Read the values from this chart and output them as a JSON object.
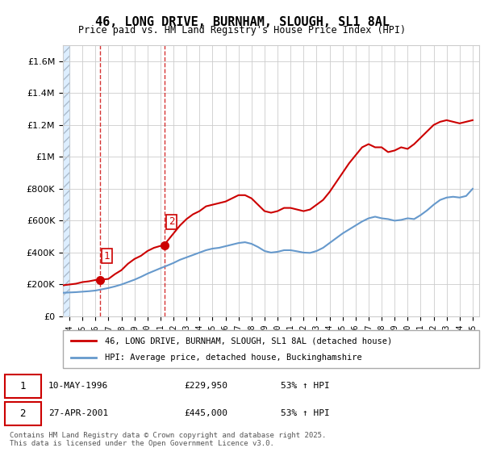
{
  "title": "46, LONG DRIVE, BURNHAM, SLOUGH, SL1 8AL",
  "subtitle": "Price paid vs. HM Land Registry's House Price Index (HPI)",
  "legend_entry1": "46, LONG DRIVE, BURNHAM, SLOUGH, SL1 8AL (detached house)",
  "legend_entry2": "HPI: Average price, detached house, Buckinghamshire",
  "footer": "Contains HM Land Registry data © Crown copyright and database right 2025.\nThis data is licensed under the Open Government Licence v3.0.",
  "sale1_date": "10-MAY-1996",
  "sale1_price": "£229,950",
  "sale1_hpi": "53% ↑ HPI",
  "sale2_date": "27-APR-2001",
  "sale2_price": "£445,000",
  "sale2_hpi": "53% ↑ HPI",
  "red_color": "#cc0000",
  "blue_color": "#6699cc",
  "background_hatch_color": "#ddeeff",
  "grid_color": "#cccccc",
  "ylim": [
    0,
    1700000
  ],
  "yticks": [
    0,
    200000,
    400000,
    600000,
    800000,
    1000000,
    1200000,
    1400000,
    1600000
  ],
  "sale1_x": 1996.36,
  "sale1_y": 229950,
  "sale2_x": 2001.32,
  "sale2_y": 445000,
  "xmin": 1993.5,
  "xmax": 2025.5,
  "red_line_x": [
    1993.5,
    1994,
    1994.5,
    1995,
    1995.5,
    1996,
    1996.36,
    1997,
    1997.5,
    1998,
    1998.5,
    1999,
    1999.5,
    2000,
    2000.5,
    2001,
    2001.32,
    2001.5,
    2002,
    2002.5,
    2003,
    2003.5,
    2004,
    2004.5,
    2005,
    2005.5,
    2006,
    2006.5,
    2007,
    2007.5,
    2008,
    2008.5,
    2009,
    2009.5,
    2010,
    2010.5,
    2011,
    2011.5,
    2012,
    2012.5,
    2013,
    2013.5,
    2014,
    2014.5,
    2015,
    2015.5,
    2016,
    2016.5,
    2017,
    2017.5,
    2018,
    2018.5,
    2019,
    2019.5,
    2020,
    2020.5,
    2021,
    2021.5,
    2022,
    2022.5,
    2023,
    2023.5,
    2024,
    2024.5,
    2025
  ],
  "red_line_y": [
    195000,
    200000,
    205000,
    215000,
    220000,
    228000,
    229950,
    235000,
    265000,
    290000,
    330000,
    360000,
    380000,
    410000,
    430000,
    442000,
    445000,
    470000,
    520000,
    570000,
    610000,
    640000,
    660000,
    690000,
    700000,
    710000,
    720000,
    740000,
    760000,
    760000,
    740000,
    700000,
    660000,
    650000,
    660000,
    680000,
    680000,
    670000,
    660000,
    670000,
    700000,
    730000,
    780000,
    840000,
    900000,
    960000,
    1010000,
    1060000,
    1080000,
    1060000,
    1060000,
    1030000,
    1040000,
    1060000,
    1050000,
    1080000,
    1120000,
    1160000,
    1200000,
    1220000,
    1230000,
    1220000,
    1210000,
    1220000,
    1230000
  ],
  "blue_line_x": [
    1993.5,
    1994,
    1994.5,
    1995,
    1995.5,
    1996,
    1996.5,
    1997,
    1997.5,
    1998,
    1998.5,
    1999,
    1999.5,
    2000,
    2000.5,
    2001,
    2001.5,
    2002,
    2002.5,
    2003,
    2003.5,
    2004,
    2004.5,
    2005,
    2005.5,
    2006,
    2006.5,
    2007,
    2007.5,
    2008,
    2008.5,
    2009,
    2009.5,
    2010,
    2010.5,
    2011,
    2011.5,
    2012,
    2012.5,
    2013,
    2013.5,
    2014,
    2014.5,
    2015,
    2015.5,
    2016,
    2016.5,
    2017,
    2017.5,
    2018,
    2018.5,
    2019,
    2019.5,
    2020,
    2020.5,
    2021,
    2021.5,
    2022,
    2022.5,
    2023,
    2023.5,
    2024,
    2024.5,
    2025
  ],
  "blue_line_y": [
    148000,
    150000,
    152000,
    155000,
    158000,
    162000,
    170000,
    178000,
    188000,
    200000,
    215000,
    230000,
    248000,
    268000,
    285000,
    302000,
    318000,
    335000,
    355000,
    370000,
    385000,
    400000,
    415000,
    425000,
    430000,
    440000,
    450000,
    460000,
    465000,
    455000,
    435000,
    410000,
    400000,
    405000,
    415000,
    415000,
    408000,
    400000,
    398000,
    410000,
    430000,
    460000,
    490000,
    520000,
    545000,
    570000,
    595000,
    615000,
    625000,
    615000,
    610000,
    600000,
    605000,
    615000,
    610000,
    635000,
    665000,
    700000,
    730000,
    745000,
    750000,
    745000,
    755000,
    800000
  ]
}
